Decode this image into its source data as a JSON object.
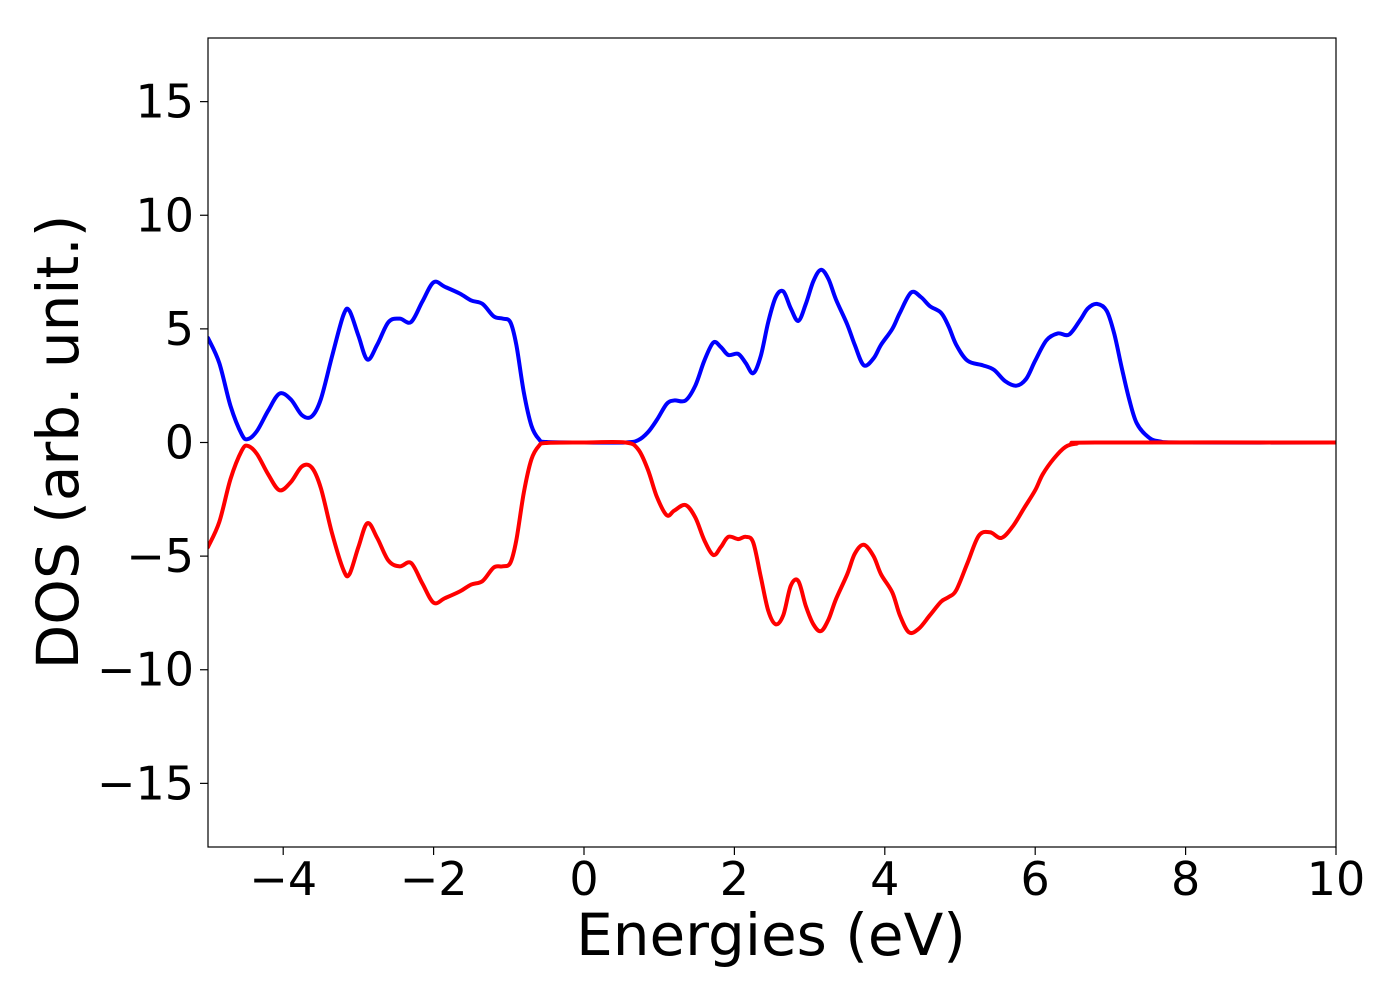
{
  "chart_data": {
    "type": "line",
    "title": "",
    "xlabel": "Energies (eV)",
    "ylabel": "DOS (arb. unit.)",
    "xlim": [
      -5,
      10
    ],
    "ylim": [
      -17.8,
      17.8
    ],
    "x_ticks": [
      -4,
      -2,
      0,
      2,
      4,
      6,
      8,
      10
    ],
    "x_tick_labels": [
      "−4",
      "−2",
      "0",
      "2",
      "4",
      "6",
      "8",
      "10"
    ],
    "y_ticks": [
      -15,
      -10,
      -5,
      0,
      5,
      10,
      15
    ],
    "y_tick_labels": [
      "−15",
      "−10",
      "−5",
      "0",
      "5",
      "10",
      "15"
    ],
    "grid": false,
    "legend": false,
    "colors": {
      "spin_up": "#0000ff",
      "spin_down": "#ff0000",
      "axes": "#000000"
    },
    "series": [
      {
        "color": "#0000ff",
        "points": [
          [
            -5.0,
            4.6
          ],
          [
            -4.85,
            3.5
          ],
          [
            -4.7,
            1.6
          ],
          [
            -4.55,
            0.35
          ],
          [
            -4.47,
            0.15
          ],
          [
            -4.35,
            0.5
          ],
          [
            -4.2,
            1.4
          ],
          [
            -4.05,
            2.15
          ],
          [
            -3.9,
            1.9
          ],
          [
            -3.75,
            1.2
          ],
          [
            -3.62,
            1.15
          ],
          [
            -3.5,
            1.9
          ],
          [
            -3.35,
            3.8
          ],
          [
            -3.2,
            5.6
          ],
          [
            -3.12,
            5.8
          ],
          [
            -3.0,
            4.7
          ],
          [
            -2.88,
            3.65
          ],
          [
            -2.75,
            4.3
          ],
          [
            -2.6,
            5.3
          ],
          [
            -2.45,
            5.45
          ],
          [
            -2.3,
            5.3
          ],
          [
            -2.15,
            6.2
          ],
          [
            -2.0,
            7.05
          ],
          [
            -1.85,
            6.85
          ],
          [
            -1.65,
            6.55
          ],
          [
            -1.5,
            6.25
          ],
          [
            -1.35,
            6.1
          ],
          [
            -1.2,
            5.55
          ],
          [
            -1.08,
            5.45
          ],
          [
            -0.98,
            5.3
          ],
          [
            -0.9,
            4.3
          ],
          [
            -0.8,
            2.2
          ],
          [
            -0.7,
            0.75
          ],
          [
            -0.6,
            0.15
          ],
          [
            -0.5,
            0.02
          ],
          [
            0.0,
            0.0
          ],
          [
            0.55,
            0.0
          ],
          [
            0.72,
            0.1
          ],
          [
            0.85,
            0.45
          ],
          [
            0.97,
            1.0
          ],
          [
            1.1,
            1.7
          ],
          [
            1.2,
            1.85
          ],
          [
            1.35,
            1.85
          ],
          [
            1.48,
            2.5
          ],
          [
            1.6,
            3.6
          ],
          [
            1.72,
            4.4
          ],
          [
            1.82,
            4.2
          ],
          [
            1.92,
            3.85
          ],
          [
            2.05,
            3.9
          ],
          [
            2.15,
            3.5
          ],
          [
            2.25,
            3.05
          ],
          [
            2.35,
            3.8
          ],
          [
            2.45,
            5.3
          ],
          [
            2.55,
            6.4
          ],
          [
            2.65,
            6.65
          ],
          [
            2.75,
            5.9
          ],
          [
            2.85,
            5.35
          ],
          [
            2.95,
            6.1
          ],
          [
            3.05,
            7.1
          ],
          [
            3.15,
            7.6
          ],
          [
            3.25,
            7.2
          ],
          [
            3.35,
            6.3
          ],
          [
            3.5,
            5.2
          ],
          [
            3.6,
            4.3
          ],
          [
            3.72,
            3.4
          ],
          [
            3.85,
            3.7
          ],
          [
            3.95,
            4.3
          ],
          [
            4.1,
            5.0
          ],
          [
            4.2,
            5.7
          ],
          [
            4.35,
            6.6
          ],
          [
            4.48,
            6.4
          ],
          [
            4.6,
            6.0
          ],
          [
            4.75,
            5.7
          ],
          [
            4.85,
            5.1
          ],
          [
            4.95,
            4.3
          ],
          [
            5.1,
            3.6
          ],
          [
            5.3,
            3.4
          ],
          [
            5.45,
            3.2
          ],
          [
            5.6,
            2.7
          ],
          [
            5.75,
            2.5
          ],
          [
            5.88,
            2.8
          ],
          [
            6.0,
            3.6
          ],
          [
            6.15,
            4.5
          ],
          [
            6.3,
            4.8
          ],
          [
            6.45,
            4.75
          ],
          [
            6.6,
            5.4
          ],
          [
            6.7,
            5.9
          ],
          [
            6.82,
            6.1
          ],
          [
            6.95,
            5.8
          ],
          [
            7.05,
            4.8
          ],
          [
            7.15,
            3.3
          ],
          [
            7.25,
            1.9
          ],
          [
            7.35,
            0.85
          ],
          [
            7.5,
            0.25
          ],
          [
            7.65,
            0.05
          ],
          [
            8.0,
            0.0
          ],
          [
            10.0,
            0.0
          ]
        ]
      },
      {
        "color": "#ff0000",
        "points": [
          [
            -5.0,
            -4.6
          ],
          [
            -4.85,
            -3.5
          ],
          [
            -4.7,
            -1.6
          ],
          [
            -4.55,
            -0.35
          ],
          [
            -4.47,
            -0.15
          ],
          [
            -4.35,
            -0.5
          ],
          [
            -4.2,
            -1.4
          ],
          [
            -4.05,
            -2.1
          ],
          [
            -3.9,
            -1.75
          ],
          [
            -3.75,
            -1.05
          ],
          [
            -3.62,
            -1.1
          ],
          [
            -3.5,
            -2.0
          ],
          [
            -3.35,
            -4.0
          ],
          [
            -3.2,
            -5.6
          ],
          [
            -3.12,
            -5.8
          ],
          [
            -3.0,
            -4.6
          ],
          [
            -2.88,
            -3.55
          ],
          [
            -2.75,
            -4.2
          ],
          [
            -2.6,
            -5.2
          ],
          [
            -2.45,
            -5.45
          ],
          [
            -2.3,
            -5.3
          ],
          [
            -2.15,
            -6.2
          ],
          [
            -2.0,
            -7.05
          ],
          [
            -1.85,
            -6.85
          ],
          [
            -1.65,
            -6.55
          ],
          [
            -1.5,
            -6.25
          ],
          [
            -1.35,
            -6.1
          ],
          [
            -1.2,
            -5.5
          ],
          [
            -1.08,
            -5.45
          ],
          [
            -0.98,
            -5.3
          ],
          [
            -0.9,
            -4.3
          ],
          [
            -0.8,
            -2.2
          ],
          [
            -0.7,
            -0.75
          ],
          [
            -0.6,
            -0.15
          ],
          [
            -0.5,
            -0.02
          ],
          [
            0.0,
            0.0
          ],
          [
            0.55,
            0.0
          ],
          [
            0.72,
            -0.3
          ],
          [
            0.85,
            -1.2
          ],
          [
            0.97,
            -2.4
          ],
          [
            1.1,
            -3.2
          ],
          [
            1.2,
            -3.0
          ],
          [
            1.35,
            -2.75
          ],
          [
            1.48,
            -3.3
          ],
          [
            1.6,
            -4.3
          ],
          [
            1.72,
            -4.95
          ],
          [
            1.82,
            -4.6
          ],
          [
            1.92,
            -4.15
          ],
          [
            2.05,
            -4.25
          ],
          [
            2.15,
            -4.15
          ],
          [
            2.25,
            -4.4
          ],
          [
            2.35,
            -5.9
          ],
          [
            2.45,
            -7.4
          ],
          [
            2.55,
            -8.0
          ],
          [
            2.65,
            -7.6
          ],
          [
            2.75,
            -6.3
          ],
          [
            2.85,
            -6.1
          ],
          [
            2.95,
            -7.2
          ],
          [
            3.05,
            -8.0
          ],
          [
            3.15,
            -8.3
          ],
          [
            3.25,
            -7.8
          ],
          [
            3.35,
            -6.9
          ],
          [
            3.5,
            -5.8
          ],
          [
            3.6,
            -4.9
          ],
          [
            3.72,
            -4.5
          ],
          [
            3.85,
            -5.0
          ],
          [
            3.95,
            -5.8
          ],
          [
            4.1,
            -6.6
          ],
          [
            4.2,
            -7.6
          ],
          [
            4.32,
            -8.35
          ],
          [
            4.45,
            -8.2
          ],
          [
            4.6,
            -7.6
          ],
          [
            4.75,
            -7.0
          ],
          [
            4.85,
            -6.8
          ],
          [
            4.95,
            -6.5
          ],
          [
            5.1,
            -5.3
          ],
          [
            5.25,
            -4.1
          ],
          [
            5.4,
            -3.95
          ],
          [
            5.55,
            -4.2
          ],
          [
            5.7,
            -3.7
          ],
          [
            5.85,
            -2.9
          ],
          [
            6.0,
            -2.1
          ],
          [
            6.1,
            -1.4
          ],
          [
            6.25,
            -0.7
          ],
          [
            6.4,
            -0.2
          ],
          [
            6.55,
            -0.05
          ],
          [
            6.8,
            0.0
          ],
          [
            10.0,
            0.0
          ]
        ]
      }
    ]
  }
}
